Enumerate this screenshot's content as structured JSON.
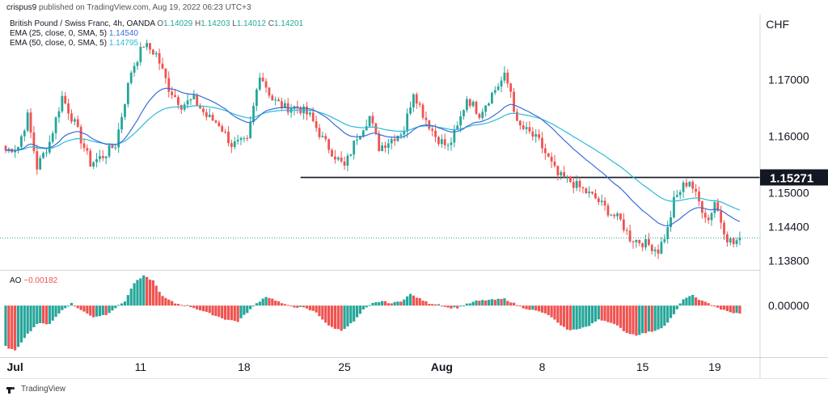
{
  "top_bar": {
    "author": "crispus9",
    "published_text": "published on TradingView.com, Aug 19, 2022 06:23 UTC+3"
  },
  "legend": {
    "symbol": "British Pound / Swiss Franc, 4h, OANDA",
    "ohlc": {
      "o_label": "O",
      "o": "1.14029",
      "h_label": "H",
      "h": "1.14203",
      "l_label": "L",
      "l": "1.14012",
      "c_label": "C",
      "c": "1.14201"
    },
    "ema25": {
      "label": "EMA (25, close, 0, SMA, 5)",
      "value": "1.14540",
      "color": "#3a6cd9"
    },
    "ema50": {
      "label": "EMA (50, close, 0, SMA, 5)",
      "value": "1.14795",
      "color": "#2bbbd8"
    },
    "ao": {
      "label": "AO",
      "value": "−0.00182"
    }
  },
  "currency": "CHF",
  "footer": {
    "brand": "TradingView"
  },
  "colors": {
    "up": "#26a69a",
    "down": "#ef5350",
    "ema25": "#3a6cd9",
    "ema50": "#2bbbd8",
    "level": "#131722",
    "label_bg": "#131722"
  },
  "chart_data": {
    "type": "candlestick",
    "title": "British Pound / Swiss Franc, 4h, OANDA",
    "price_axis": {
      "ylim": [
        1.1365,
        1.1815
      ],
      "ticks": [
        "1.17000",
        "1.16000",
        "1.15000",
        "1.14400",
        "1.13800"
      ],
      "tick_values": [
        1.17,
        1.16,
        1.15,
        1.144,
        1.138
      ]
    },
    "x_ticks": [
      {
        "label": "Jul",
        "bar": 3
      },
      {
        "label": "11",
        "bar": 43
      },
      {
        "label": "18",
        "bar": 76
      },
      {
        "label": "25",
        "bar": 108
      },
      {
        "label": "Aug",
        "bar": 139
      },
      {
        "label": "8",
        "bar": 171
      },
      {
        "label": "15",
        "bar": 203
      },
      {
        "label": "19",
        "bar": 226
      }
    ],
    "horizontal_level": {
      "value": 1.15271,
      "label": "1.15271",
      "start_bar": 94
    },
    "last_price": 1.14201,
    "anchors": [
      [
        0,
        1.1575
      ],
      [
        4,
        1.1582
      ],
      [
        7,
        1.1635
      ],
      [
        10,
        1.1545
      ],
      [
        14,
        1.159
      ],
      [
        18,
        1.167
      ],
      [
        22,
        1.1622
      ],
      [
        27,
        1.1552
      ],
      [
        31,
        1.1565
      ],
      [
        35,
        1.1585
      ],
      [
        40,
        1.1715
      ],
      [
        44,
        1.1762
      ],
      [
        48,
        1.1745
      ],
      [
        52,
        1.1685
      ],
      [
        56,
        1.1655
      ],
      [
        60,
        1.1665
      ],
      [
        64,
        1.1635
      ],
      [
        68,
        1.1622
      ],
      [
        72,
        1.1585
      ],
      [
        77,
        1.159
      ],
      [
        81,
        1.1712
      ],
      [
        85,
        1.1665
      ],
      [
        89,
        1.165
      ],
      [
        93,
        1.1652
      ],
      [
        97,
        1.1635
      ],
      [
        101,
        1.1595
      ],
      [
        105,
        1.1565
      ],
      [
        108,
        1.1545
      ],
      [
        112,
        1.16
      ],
      [
        116,
        1.1635
      ],
      [
        119,
        1.158
      ],
      [
        123,
        1.1595
      ],
      [
        127,
        1.1612
      ],
      [
        130,
        1.168
      ],
      [
        133,
        1.164
      ],
      [
        137,
        1.16
      ],
      [
        141,
        1.158
      ],
      [
        144,
        1.1615
      ],
      [
        147,
        1.1668
      ],
      [
        151,
        1.164
      ],
      [
        155,
        1.1675
      ],
      [
        159,
        1.1705
      ],
      [
        161,
        1.168
      ],
      [
        163,
        1.162
      ],
      [
        167,
        1.1605
      ],
      [
        170,
        1.159
      ],
      [
        173,
        1.156
      ],
      [
        176,
        1.153
      ],
      [
        180,
        1.152
      ],
      [
        184,
        1.1505
      ],
      [
        188,
        1.149
      ],
      [
        192,
        1.1468
      ],
      [
        196,
        1.145
      ],
      [
        199,
        1.142
      ],
      [
        203,
        1.1412
      ],
      [
        206,
        1.1405
      ],
      [
        208,
        1.1398
      ],
      [
        211,
        1.1435
      ],
      [
        213,
        1.1485
      ],
      [
        216,
        1.1512
      ],
      [
        218,
        1.1522
      ],
      [
        220,
        1.1495
      ],
      [
        222,
        1.1472
      ],
      [
        224,
        1.1452
      ],
      [
        226,
        1.1485
      ],
      [
        228,
        1.145
      ],
      [
        230,
        1.142
      ],
      [
        232,
        1.141
      ],
      [
        234,
        1.142
      ]
    ],
    "ao": {
      "ylim": [
        -0.011,
        0.0075
      ],
      "zero_label": "0.00000",
      "anchors": [
        [
          0,
          -0.009
        ],
        [
          3,
          -0.01
        ],
        [
          6,
          -0.007
        ],
        [
          10,
          -0.004
        ],
        [
          14,
          -0.004
        ],
        [
          18,
          -0.001
        ],
        [
          21,
          0.0005
        ],
        [
          24,
          -0.001
        ],
        [
          28,
          -0.0025
        ],
        [
          32,
          -0.002
        ],
        [
          35,
          -0.0005
        ],
        [
          38,
          0.001
        ],
        [
          41,
          0.005
        ],
        [
          44,
          0.0065
        ],
        [
          47,
          0.0055
        ],
        [
          50,
          0.002
        ],
        [
          54,
          0.0005
        ],
        [
          58,
          0.0
        ],
        [
          62,
          -0.001
        ],
        [
          66,
          -0.002
        ],
        [
          70,
          -0.003
        ],
        [
          74,
          -0.0035
        ],
        [
          77,
          -0.0015
        ],
        [
          80,
          0.0005
        ],
        [
          83,
          0.002
        ],
        [
          86,
          0.0012
        ],
        [
          89,
          0.0002
        ],
        [
          92,
          -0.0003
        ],
        [
          95,
          -0.0005
        ],
        [
          99,
          -0.0015
        ],
        [
          103,
          -0.0045
        ],
        [
          107,
          -0.0055
        ],
        [
          111,
          -0.0035
        ],
        [
          114,
          -0.001
        ],
        [
          117,
          0.0005
        ],
        [
          120,
          0.001
        ],
        [
          123,
          0.0005
        ],
        [
          126,
          0.001
        ],
        [
          129,
          0.0025
        ],
        [
          132,
          0.0015
        ],
        [
          135,
          0.0005
        ],
        [
          138,
          0.0003
        ],
        [
          141,
          -0.0005
        ],
        [
          144,
          -0.0005
        ],
        [
          147,
          0.0003
        ],
        [
          150,
          0.001
        ],
        [
          153,
          0.0012
        ],
        [
          156,
          0.0013
        ],
        [
          159,
          0.0015
        ],
        [
          162,
          0.0005
        ],
        [
          165,
          -0.0005
        ],
        [
          168,
          -0.001
        ],
        [
          171,
          -0.0015
        ],
        [
          174,
          -0.0025
        ],
        [
          177,
          -0.0045
        ],
        [
          180,
          -0.0055
        ],
        [
          183,
          -0.005
        ],
        [
          186,
          -0.0045
        ],
        [
          189,
          -0.003
        ],
        [
          192,
          -0.0035
        ],
        [
          195,
          -0.0045
        ],
        [
          198,
          -0.006
        ],
        [
          201,
          -0.0065
        ],
        [
          204,
          -0.006
        ],
        [
          207,
          -0.0055
        ],
        [
          210,
          -0.0045
        ],
        [
          213,
          -0.002
        ],
        [
          216,
          0.0015
        ],
        [
          219,
          0.0022
        ],
        [
          222,
          0.001
        ],
        [
          225,
          0.0002
        ],
        [
          228,
          -0.0008
        ],
        [
          231,
          -0.0015
        ],
        [
          234,
          -0.0018
        ]
      ]
    },
    "plot": {
      "bars": 235,
      "x_start": 7,
      "x_step": 3.88
    }
  }
}
